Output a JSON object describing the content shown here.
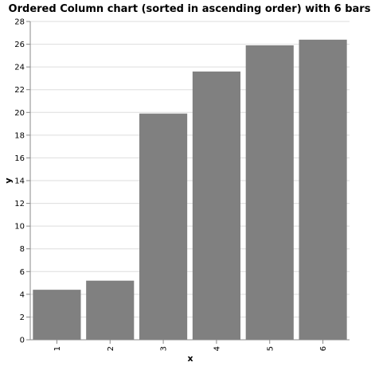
{
  "chart_data": {
    "type": "bar",
    "title": "Ordered Column chart (sorted in ascending order) with 6 bars",
    "xlabel": "x",
    "ylabel": "y",
    "categories": [
      "1",
      "2",
      "3",
      "4",
      "5",
      "6"
    ],
    "values": [
      4.4,
      5.2,
      19.9,
      23.6,
      25.9,
      26.4
    ],
    "ylim": [
      0,
      28
    ],
    "yticks": [
      0,
      2,
      4,
      6,
      8,
      10,
      12,
      14,
      16,
      18,
      20,
      22,
      24,
      26,
      28
    ],
    "grid": true,
    "bar_color": "#808080",
    "legend": "none"
  }
}
